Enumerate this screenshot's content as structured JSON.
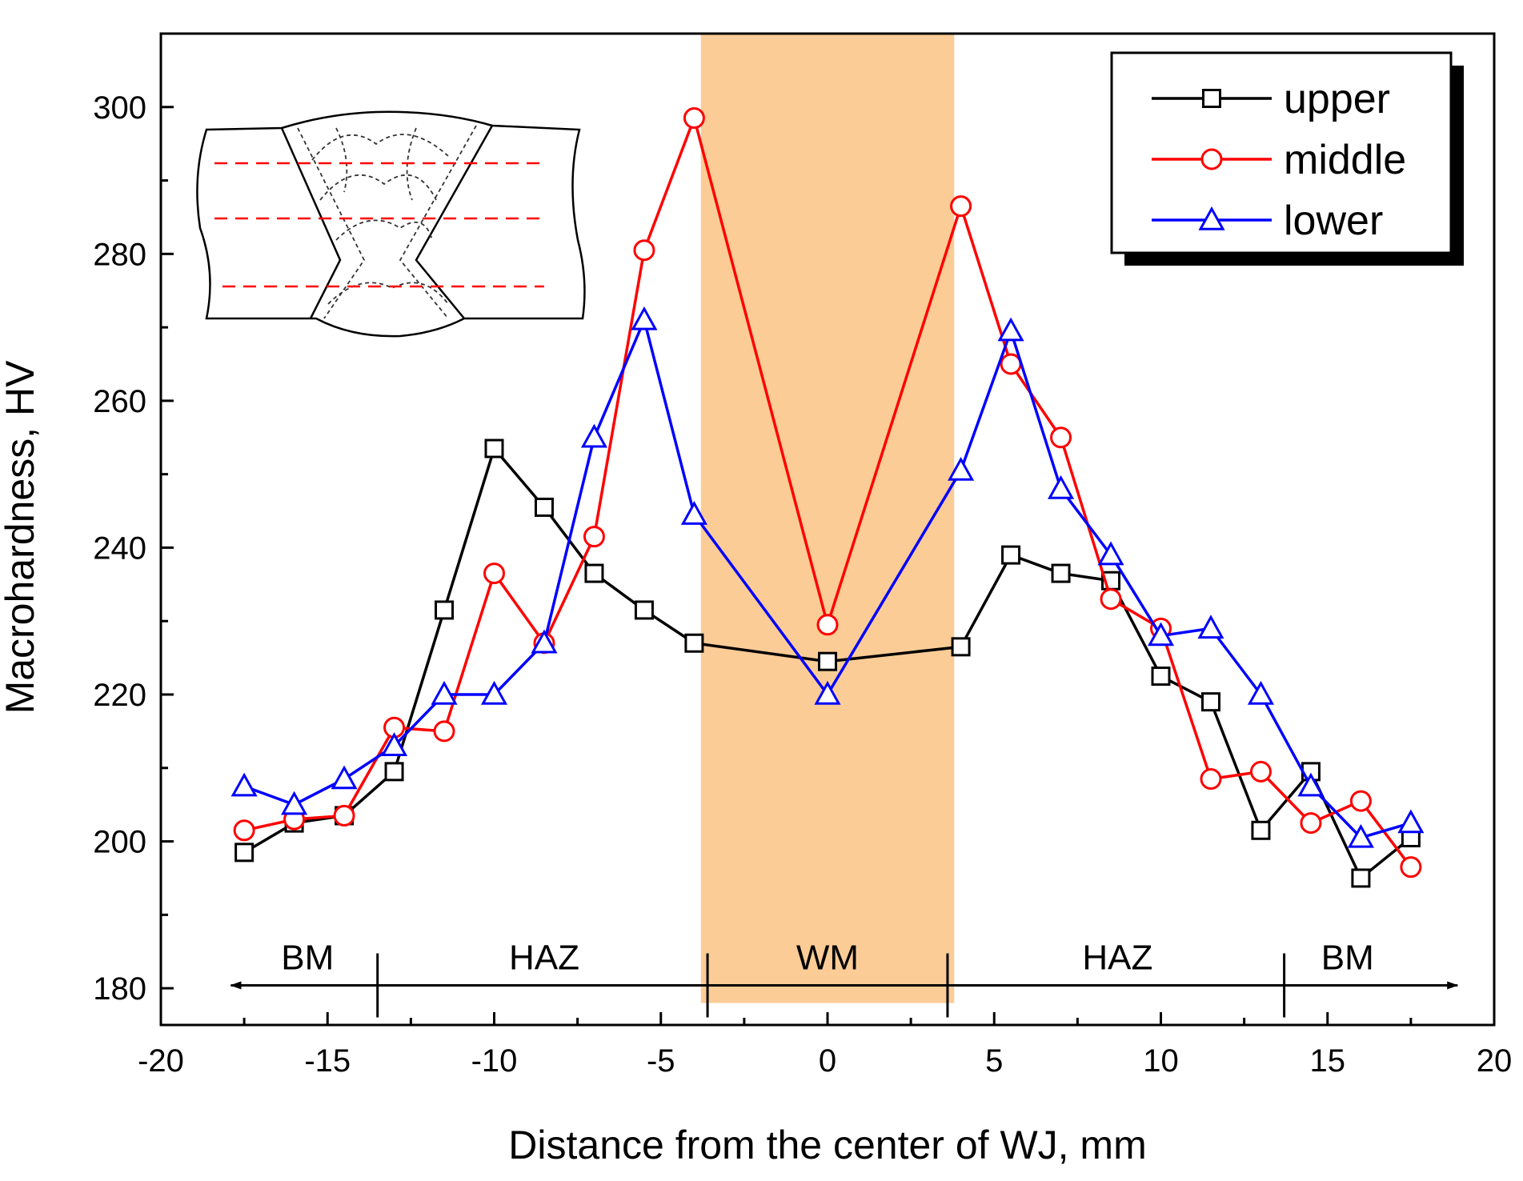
{
  "chart_data": {
    "type": "line",
    "title": "",
    "xlabel": "Distance from the center of WJ, mm",
    "ylabel": "Macrohardness, HV",
    "xlim": [
      -20,
      20
    ],
    "ylim": [
      175,
      310
    ],
    "xticks": [
      -20,
      -15,
      -10,
      -5,
      0,
      5,
      10,
      15,
      20
    ],
    "yticks": [
      180,
      200,
      220,
      240,
      260,
      280,
      300
    ],
    "x_tick_labels": [
      "-20",
      "-15",
      "-10",
      "-5",
      "0",
      "5",
      "10",
      "15",
      "20"
    ],
    "y_tick_labels": [
      "180",
      "200",
      "220",
      "240",
      "260",
      "280",
      "300"
    ],
    "grid": false,
    "legend_position": "top-right",
    "weld_metal_band": {
      "x_from": -3.8,
      "x_to": 3.8,
      "color": "#fbcc96"
    },
    "zones": [
      {
        "label": "BM",
        "x": -15.6
      },
      {
        "label": "HAZ",
        "x": -8.5
      },
      {
        "label": "WM",
        "x": 0
      },
      {
        "label": "HAZ",
        "x": 8.7
      },
      {
        "label": "BM",
        "x": 15.6
      }
    ],
    "zone_boundaries": [
      -13.5,
      -3.6,
      3.6,
      13.7
    ],
    "zone_arrow_y": 180.4,
    "series": [
      {
        "name": "upper",
        "color": "#000000",
        "marker": "square",
        "x": [
          -17.5,
          -16,
          -14.5,
          -13,
          -11.5,
          -10,
          -8.5,
          -7,
          -5.5,
          -4,
          0,
          4,
          5.5,
          7,
          8.5,
          10,
          11.5,
          13,
          14.5,
          16,
          17.5
        ],
        "y": [
          198.5,
          202.5,
          203.5,
          209.5,
          231.5,
          253.5,
          245.5,
          236.5,
          231.5,
          227,
          224.5,
          226.5,
          239,
          236.5,
          235.5,
          222.5,
          219,
          201.5,
          209.5,
          195,
          200.5
        ]
      },
      {
        "name": "middle",
        "color": "#ff0000",
        "marker": "circle",
        "x": [
          -17.5,
          -16,
          -14.5,
          -13,
          -11.5,
          -10,
          -8.5,
          -7,
          -5.5,
          -4,
          0,
          4,
          5.5,
          7,
          8.5,
          10,
          11.5,
          13,
          14.5,
          16,
          17.5
        ],
        "y": [
          201.5,
          203,
          203.5,
          215.5,
          215,
          236.5,
          227,
          241.5,
          280.5,
          298.5,
          229.5,
          286.5,
          265,
          255,
          233,
          229,
          208.5,
          209.5,
          202.5,
          205.5,
          196.5
        ]
      },
      {
        "name": "lower",
        "color": "#0000ff",
        "marker": "triangle",
        "x": [
          -17.5,
          -16,
          -14.5,
          -13,
          -11.5,
          -10,
          -8.5,
          -7,
          -5.5,
          -4,
          0,
          4,
          5.5,
          7,
          8.5,
          10,
          11.5,
          13,
          14.5,
          16,
          17.5
        ],
        "y": [
          207.5,
          205,
          208.5,
          213,
          220,
          220,
          227,
          255,
          271,
          244.5,
          220,
          250.5,
          269.5,
          248,
          239,
          228,
          229,
          220,
          207.5,
          200.5,
          202.5
        ]
      }
    ]
  }
}
